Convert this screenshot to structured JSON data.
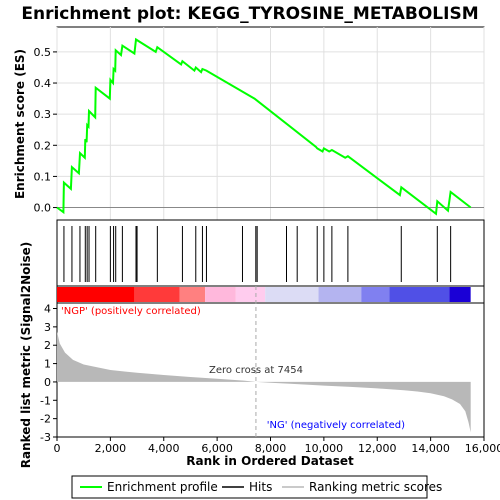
{
  "chart_data": {
    "type": "line",
    "title": "Enrichment plot: KEGG_TYROSINE_METABOLISM",
    "colors": {
      "enrichment": "#00ff00",
      "hits": "#000000",
      "metric_fill": "#b8b8b8",
      "positive_label": "#ff0000",
      "negative_label": "#0000ff",
      "grid": "#e0e0e0"
    },
    "top_panel": {
      "ylabel": "Enrichment score (ES)",
      "ylim": [
        -0.04,
        0.58
      ],
      "yticks": [
        0.0,
        0.1,
        0.2,
        0.3,
        0.4,
        0.5
      ],
      "ytick_labels": [
        "0.0",
        "0.1",
        "0.2",
        "0.3",
        "0.4",
        "0.5"
      ],
      "series_name": "Enrichment profile",
      "points": [
        [
          0,
          0.0
        ],
        [
          240,
          -0.015
        ],
        [
          260,
          0.08
        ],
        [
          520,
          0.06
        ],
        [
          560,
          0.13
        ],
        [
          820,
          0.11
        ],
        [
          860,
          0.175
        ],
        [
          1040,
          0.16
        ],
        [
          1060,
          0.22
        ],
        [
          1110,
          0.21
        ],
        [
          1130,
          0.265
        ],
        [
          1180,
          0.26
        ],
        [
          1200,
          0.31
        ],
        [
          1430,
          0.29
        ],
        [
          1450,
          0.385
        ],
        [
          1980,
          0.35
        ],
        [
          2000,
          0.41
        ],
        [
          2100,
          0.4
        ],
        [
          2120,
          0.445
        ],
        [
          2180,
          0.44
        ],
        [
          2200,
          0.505
        ],
        [
          2400,
          0.49
        ],
        [
          2450,
          0.52
        ],
        [
          2900,
          0.495
        ],
        [
          2960,
          0.54
        ],
        [
          3700,
          0.5
        ],
        [
          3760,
          0.515
        ],
        [
          4650,
          0.46
        ],
        [
          4700,
          0.47
        ],
        [
          5150,
          0.44
        ],
        [
          5200,
          0.45
        ],
        [
          5400,
          0.435
        ],
        [
          5450,
          0.445
        ],
        [
          5600,
          0.44
        ],
        [
          7400,
          0.35
        ],
        [
          9700,
          0.195
        ],
        [
          9750,
          0.19
        ],
        [
          9950,
          0.18
        ],
        [
          10000,
          0.19
        ],
        [
          10200,
          0.18
        ],
        [
          10300,
          0.185
        ],
        [
          10800,
          0.16
        ],
        [
          10900,
          0.165
        ],
        [
          12850,
          0.04
        ],
        [
          12900,
          0.065
        ],
        [
          14200,
          -0.02
        ],
        [
          14250,
          0.02
        ],
        [
          14650,
          -0.01
        ],
        [
          14750,
          0.05
        ],
        [
          15500,
          0.0
        ]
      ]
    },
    "hits_panel": {
      "series_name": "Hits",
      "positions": [
        260,
        560,
        860,
        1060,
        1130,
        1200,
        1450,
        2000,
        2120,
        2200,
        2450,
        2960,
        3000,
        3760,
        4700,
        5200,
        5450,
        5600,
        6950,
        7450,
        7500,
        8600,
        9000,
        9750,
        10000,
        10300,
        10900,
        12900,
        14250,
        14750
      ]
    },
    "metric_panel": {
      "ylabel": "Ranked list metric (Signal2Noise)",
      "series_name": "Ranking metric scores",
      "ylim": [
        -3,
        4.3
      ],
      "yticks": [
        -3,
        -2,
        -1,
        0,
        1,
        2,
        3,
        4
      ],
      "ytick_labels": [
        "-3",
        "-2",
        "-1",
        "0",
        "1",
        "2",
        "3",
        "4"
      ],
      "curve": [
        [
          0,
          2.75
        ],
        [
          100,
          2.1
        ],
        [
          300,
          1.6
        ],
        [
          600,
          1.2
        ],
        [
          1000,
          0.95
        ],
        [
          1500,
          0.8
        ],
        [
          2000,
          0.65
        ],
        [
          3000,
          0.5
        ],
        [
          4000,
          0.38
        ],
        [
          5000,
          0.27
        ],
        [
          6000,
          0.17
        ],
        [
          7000,
          0.07
        ],
        [
          7454,
          0.0
        ],
        [
          8000,
          -0.05
        ],
        [
          9000,
          -0.12
        ],
        [
          10000,
          -0.2
        ],
        [
          11000,
          -0.27
        ],
        [
          12000,
          -0.35
        ],
        [
          13000,
          -0.45
        ],
        [
          13500,
          -0.52
        ],
        [
          14000,
          -0.62
        ],
        [
          14500,
          -0.78
        ],
        [
          14800,
          -0.95
        ],
        [
          15100,
          -1.2
        ],
        [
          15300,
          -1.6
        ],
        [
          15420,
          -2.2
        ],
        [
          15500,
          -2.75
        ]
      ],
      "positive_label": "'NGP' (positively correlated)",
      "negative_label": "'NG' (negatively correlated)",
      "zero_cross_label": "Zero cross at 7454",
      "zero_cross": 7454
    },
    "xaxis": {
      "xlabel": "Rank in Ordered Dataset",
      "xlim": [
        0,
        16000
      ],
      "xticks": [
        0,
        2000,
        4000,
        6000,
        8000,
        10000,
        12000,
        14000,
        16000
      ],
      "xtick_labels": [
        "0",
        "2,000",
        "4,000",
        "6,000",
        "8,000",
        "10,000",
        "12,000",
        "14,000",
        "16,000"
      ],
      "n_genes": 15500
    },
    "color_bar": {
      "segments": [
        {
          "from": 0,
          "to": 2900,
          "color": "#ff0000"
        },
        {
          "from": 2900,
          "to": 4600,
          "color": "#ff3a3a"
        },
        {
          "from": 4600,
          "to": 5550,
          "color": "#ff8080"
        },
        {
          "from": 5550,
          "to": 6700,
          "color": "#ffb8dc"
        },
        {
          "from": 6700,
          "to": 7800,
          "color": "#ffccee"
        },
        {
          "from": 7800,
          "to": 9800,
          "color": "#dcdcf5"
        },
        {
          "from": 9800,
          "to": 11400,
          "color": "#b4b4f0"
        },
        {
          "from": 11400,
          "to": 12450,
          "color": "#8080f0"
        },
        {
          "from": 12450,
          "to": 14700,
          "color": "#5050e6"
        },
        {
          "from": 14700,
          "to": 15500,
          "color": "#1a00d6"
        }
      ]
    },
    "legend": {
      "placement": "bottom",
      "items": [
        {
          "label": "Enrichment profile",
          "kind": "line",
          "color": "#00ff00"
        },
        {
          "label": "Hits",
          "kind": "line",
          "color": "#000000"
        },
        {
          "label": "Ranking metric scores",
          "kind": "line",
          "color": "#b8b8b8"
        }
      ]
    }
  }
}
